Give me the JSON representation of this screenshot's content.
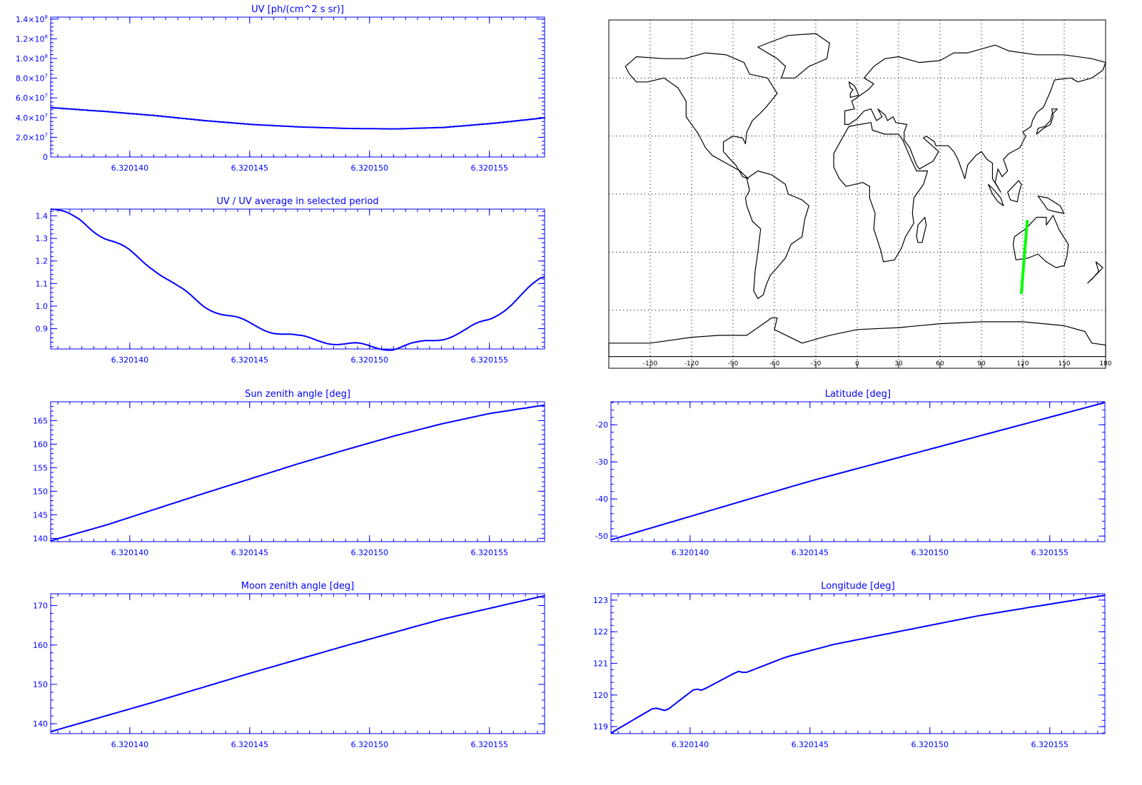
{
  "colors": {
    "plot": "#0000ff",
    "map_line": "#000000",
    "track": "#00ff00",
    "background": "#ffffff"
  },
  "chart_data": [
    {
      "id": "uv",
      "type": "line",
      "title": "UV [ph/(cm^2 s sr)]",
      "xlabel": "",
      "ylabel": "",
      "xlim": [
        6.3201367,
        6.3201573
      ],
      "ylim": [
        0,
        142000000
      ],
      "xticks": [
        6.32014,
        6.320145,
        6.32015,
        6.320155
      ],
      "xtick_labels": [
        "6.320140",
        "6.320145",
        "6.320150",
        "6.320155"
      ],
      "yticks": [
        0,
        20000000,
        40000000,
        60000000,
        80000000,
        100000000,
        120000000,
        140000000
      ],
      "ytick_labels": [
        {
          "mant": "0",
          "exp": ""
        },
        {
          "mant": "2.0×10",
          "exp": "7"
        },
        {
          "mant": "4.0×10",
          "exp": "7"
        },
        {
          "mant": "6.0×10",
          "exp": "7"
        },
        {
          "mant": "8.0×10",
          "exp": "7"
        },
        {
          "mant": "1.0×10",
          "exp": "8"
        },
        {
          "mant": "1.2×10",
          "exp": "8"
        },
        {
          "mant": "1.4×10",
          "exp": "8"
        }
      ],
      "step": true,
      "x": [
        6.3201367,
        6.320139,
        6.320141,
        6.320143,
        6.320145,
        6.320147,
        6.320149,
        6.320151,
        6.320153,
        6.320155,
        6.3201573
      ],
      "y": [
        50000000,
        46000000,
        42000000,
        37000000,
        33000000,
        30500000,
        29000000,
        28500000,
        30000000,
        34000000,
        40000000
      ]
    },
    {
      "id": "ratio",
      "type": "line",
      "title": "UV / UV average in selected period",
      "xlabel": "",
      "ylabel": "",
      "xlim": [
        6.3201367,
        6.3201573
      ],
      "ylim": [
        0.81,
        1.43
      ],
      "xticks": [
        6.32014,
        6.320145,
        6.32015,
        6.320155
      ],
      "xtick_labels": [
        "6.320140",
        "6.320145",
        "6.320150",
        "6.320155"
      ],
      "yticks": [
        0.9,
        1.0,
        1.1,
        1.2,
        1.3,
        1.4
      ],
      "ytick_labels": [
        {
          "mant": "0.9",
          "exp": ""
        },
        {
          "mant": "1.0",
          "exp": ""
        },
        {
          "mant": "1.1",
          "exp": ""
        },
        {
          "mant": "1.2",
          "exp": ""
        },
        {
          "mant": "1.3",
          "exp": ""
        },
        {
          "mant": "1.4",
          "exp": ""
        }
      ],
      "jitter": 0.012,
      "x": [
        6.3201367,
        6.320138,
        6.320139,
        6.32014,
        6.320141,
        6.320142,
        6.320143,
        6.320144,
        6.320145,
        6.320146,
        6.320147,
        6.320148,
        6.320149,
        6.32015,
        6.320151,
        6.320152,
        6.320153,
        6.320154,
        6.320155,
        6.320156,
        6.3201573
      ],
      "y": [
        1.43,
        1.38,
        1.3,
        1.24,
        1.17,
        1.08,
        1.01,
        0.96,
        0.92,
        0.89,
        0.86,
        0.85,
        0.83,
        0.82,
        0.815,
        0.83,
        0.86,
        0.89,
        0.94,
        1.02,
        1.13
      ]
    },
    {
      "id": "sza",
      "type": "line",
      "title": "Sun zenith angle [deg]",
      "xlabel": "",
      "ylabel": "",
      "xlim": [
        6.3201367,
        6.3201573
      ],
      "ylim": [
        139.3,
        169
      ],
      "xticks": [
        6.32014,
        6.320145,
        6.32015,
        6.320155
      ],
      "xtick_labels": [
        "6.320140",
        "6.320145",
        "6.320150",
        "6.320155"
      ],
      "yticks": [
        140,
        145,
        150,
        155,
        160,
        165
      ],
      "ytick_labels": [
        {
          "mant": "140",
          "exp": ""
        },
        {
          "mant": "145",
          "exp": ""
        },
        {
          "mant": "150",
          "exp": ""
        },
        {
          "mant": "155",
          "exp": ""
        },
        {
          "mant": "160",
          "exp": ""
        },
        {
          "mant": "165",
          "exp": ""
        }
      ],
      "x": [
        6.3201367,
        6.320139,
        6.320141,
        6.320143,
        6.320145,
        6.320147,
        6.320149,
        6.320151,
        6.320153,
        6.320155,
        6.3201573
      ],
      "y": [
        139.5,
        142.8,
        146.1,
        149.4,
        152.6,
        155.8,
        158.8,
        161.7,
        164.3,
        166.5,
        168.3
      ]
    },
    {
      "id": "lat",
      "type": "line",
      "title": "Latitude [deg]",
      "xlabel": "",
      "ylabel": "",
      "xlim": [
        6.3201367,
        6.3201573
      ],
      "ylim": [
        -51.5,
        -13.8
      ],
      "xticks": [
        6.32014,
        6.320145,
        6.32015,
        6.320155
      ],
      "xtick_labels": [
        "6.320140",
        "6.320145",
        "6.320150",
        "6.320155"
      ],
      "yticks": [
        -50,
        -40,
        -30,
        -20
      ],
      "ytick_labels": [
        {
          "mant": "-50",
          "exp": ""
        },
        {
          "mant": "-40",
          "exp": ""
        },
        {
          "mant": "-30",
          "exp": ""
        },
        {
          "mant": "-20",
          "exp": ""
        }
      ],
      "x": [
        6.3201367,
        6.320145,
        6.3201573
      ],
      "y": [
        -51.0,
        -35.2,
        -14.0
      ]
    },
    {
      "id": "mza",
      "type": "line",
      "title": "Moon zenith angle [deg]",
      "xlabel": "",
      "ylabel": "",
      "xlim": [
        6.3201367,
        6.3201573
      ],
      "ylim": [
        137.5,
        173
      ],
      "xticks": [
        6.32014,
        6.320145,
        6.32015,
        6.320155
      ],
      "xtick_labels": [
        "6.320140",
        "6.320145",
        "6.320150",
        "6.320155"
      ],
      "yticks": [
        140,
        150,
        160,
        170
      ],
      "ytick_labels": [
        {
          "mant": "140",
          "exp": ""
        },
        {
          "mant": "150",
          "exp": ""
        },
        {
          "mant": "160",
          "exp": ""
        },
        {
          "mant": "170",
          "exp": ""
        }
      ],
      "x": [
        6.3201367,
        6.320141,
        6.320145,
        6.320149,
        6.320153,
        6.3201573
      ],
      "y": [
        138.0,
        145.5,
        152.8,
        159.8,
        166.5,
        172.5
      ]
    },
    {
      "id": "lon",
      "type": "line",
      "title": "Longitude [deg]",
      "xlabel": "",
      "ylabel": "",
      "xlim": [
        6.3201367,
        6.3201573
      ],
      "ylim": [
        118.78,
        123.2
      ],
      "xticks": [
        6.32014,
        6.320145,
        6.32015,
        6.320155
      ],
      "xtick_labels": [
        "6.320140",
        "6.320145",
        "6.320150",
        "6.320155"
      ],
      "yticks": [
        119,
        120,
        121,
        122,
        123
      ],
      "ytick_labels": [
        {
          "mant": "119",
          "exp": ""
        },
        {
          "mant": "120",
          "exp": ""
        },
        {
          "mant": "121",
          "exp": ""
        },
        {
          "mant": "122",
          "exp": ""
        },
        {
          "mant": "123",
          "exp": ""
        }
      ],
      "x": [
        6.3201367,
        6.3201385,
        6.320139,
        6.3201402,
        6.3201405,
        6.320142,
        6.3201423,
        6.320144,
        6.320146,
        6.320148,
        6.32015,
        6.320152,
        6.320154,
        6.3201573
      ],
      "y": [
        118.8,
        119.6,
        119.5,
        120.2,
        120.15,
        120.75,
        120.7,
        121.2,
        121.6,
        121.9,
        122.2,
        122.5,
        122.75,
        123.15
      ]
    },
    {
      "id": "map",
      "type": "map",
      "title": "",
      "xlim": [
        -180,
        180
      ],
      "ylim": [
        -90,
        90
      ],
      "xticks": [
        -150,
        -120,
        -90,
        -60,
        -30,
        0,
        30,
        60,
        90,
        120,
        150,
        180
      ],
      "xtick_labels": [
        "-150",
        "-120",
        "-90",
        "-60",
        "-30",
        "0",
        "30",
        "60",
        "90",
        "120",
        "150",
        "180"
      ],
      "gridlines_lat": [
        -60,
        -30,
        0,
        30,
        60
      ],
      "track": {
        "lon": [
          119.0,
          120.0,
          121.0,
          122.0,
          123.2
        ],
        "lat": [
          -51.0,
          -42.0,
          -33.0,
          -24.0,
          -14.0
        ]
      }
    }
  ]
}
